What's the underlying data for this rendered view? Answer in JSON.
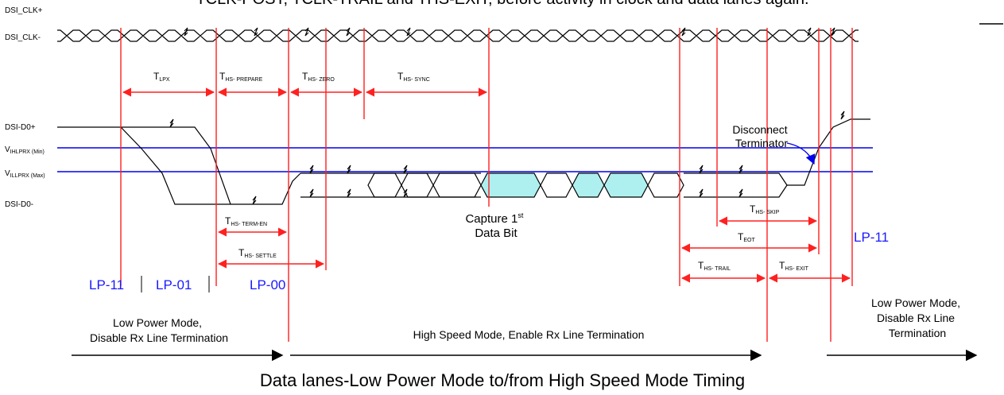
{
  "header_text": "TCLK-POST, TCLK-TRAIL and THS-EXIT, before activity in clock and data lanes again.",
  "signals": {
    "clk_p": "DSI_CLK+",
    "clk_n": "DSI_CLK-",
    "d0_p": "DSI-D0+",
    "d0_n": "DSI-D0-",
    "vih_main": "V",
    "vih_sub": "IHLPRX (Min)",
    "vil_main": "V",
    "vil_sub": "ILLPRX (Max)"
  },
  "timings": [
    {
      "main": "T",
      "sub": "LPX"
    },
    {
      "main": "T",
      "sub": "HS- PREPARE"
    },
    {
      "main": "T",
      "sub": "HS- ZERO"
    },
    {
      "main": "T",
      "sub": "HS- SYNC"
    },
    {
      "main": "T",
      "sub": "HS- TERM-EN"
    },
    {
      "main": "T",
      "sub": "HS- SETTLE"
    },
    {
      "main": "T",
      "sub": "HS- SKIP"
    },
    {
      "main": "T",
      "sub": "EOT"
    },
    {
      "main": "T",
      "sub": "HS- TRAIL"
    },
    {
      "main": "T",
      "sub": "HS- EXIT"
    }
  ],
  "states": {
    "lp11_left": "LP-11",
    "lp01": "LP-01",
    "lp00": "LP-00",
    "lp11_right": "LP-11"
  },
  "annotations": {
    "disconnect_line1": "Disconnect",
    "disconnect_line2": "Terminator",
    "capture_line1": "Capture 1",
    "capture_sup": "st",
    "capture_line2": "Data Bit"
  },
  "modes": {
    "left_line1": "Low Power Mode,",
    "left_line2": "Disable Rx Line Termination",
    "middle": "High Speed Mode, Enable Rx Line Termination",
    "right_line1": "Low Power Mode,",
    "right_line2": "Disable Rx Line",
    "right_line3": "Termination"
  },
  "title": "Data lanes-Low Power Mode to/from High Speed Mode Timing",
  "colors": {
    "timing_red": "#ff2020",
    "threshold_blue": "#0000ee",
    "state_blue": "#1a1aff",
    "capture_fill": "#aef0f0"
  }
}
